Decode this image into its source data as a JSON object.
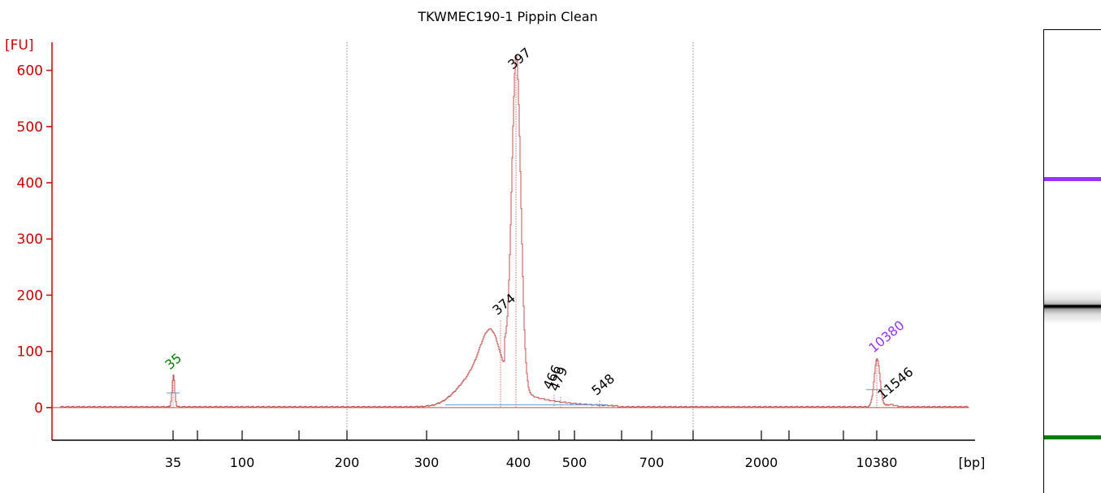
{
  "chart_data": {
    "type": "line",
    "title": "TKWMEC190-1 Pippin Clean",
    "y_axis": {
      "label": "[FU]",
      "ticks": [
        0,
        100,
        200,
        300,
        400,
        500,
        600
      ],
      "range": [
        -58,
        650
      ]
    },
    "x_axis": {
      "label": "[bp]",
      "tick_labels": [
        "35",
        "100",
        "200",
        "300",
        "400",
        "500",
        "700",
        "2000",
        "10380"
      ]
    },
    "grid": "dotted verticals at 200 bp and between 700 and 2000 bp",
    "peaks": [
      {
        "label": "35",
        "fu": 58,
        "kind": "lower-marker"
      },
      {
        "label": "374",
        "fu": 155
      },
      {
        "label": "397",
        "fu": 592
      },
      {
        "label": "466",
        "fu": 22
      },
      {
        "label": "479",
        "fu": 19
      },
      {
        "label": "548",
        "fu": 12
      },
      {
        "label": "10380",
        "fu": 88,
        "kind": "upper-marker"
      },
      {
        "label": "11546",
        "fu": 5
      }
    ],
    "colors": {
      "axis": "#cc0000",
      "trace": "#c0504d",
      "baseline": "#5b9bd5",
      "lower_marker": "#008000",
      "upper_marker": "#9933ff",
      "peak_label": "#000000"
    }
  },
  "gel": {
    "bands": [
      {
        "kind": "upper-marker",
        "color": "#9933ff"
      },
      {
        "kind": "sample",
        "color": "#000000"
      },
      {
        "kind": "lower-marker",
        "color": "#008000"
      }
    ]
  }
}
